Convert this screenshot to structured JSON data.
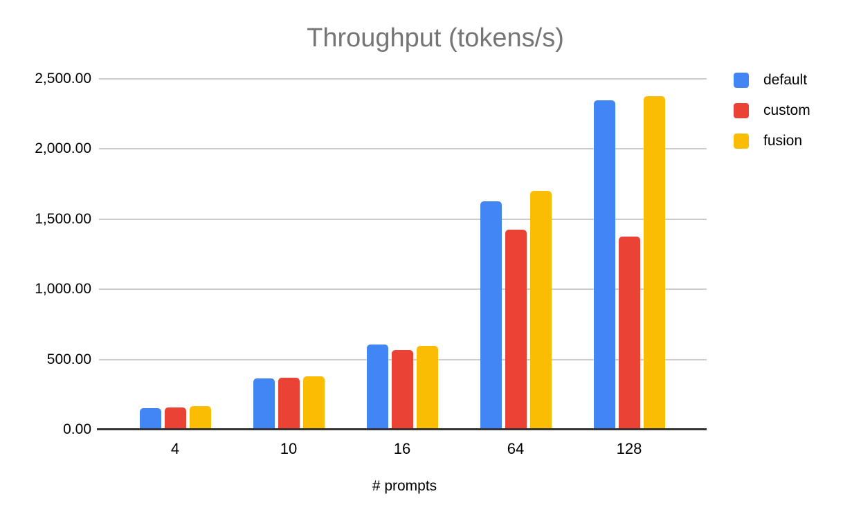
{
  "title": "Throughput (tokens/s)",
  "colors": {
    "background": "#ffffff",
    "title_text": "#757575",
    "axis_line": "#333333",
    "gridline": "#cccccc",
    "label_text": "#000000",
    "series_default": "#4285F4",
    "series_custom": "#EA4335",
    "series_fusion": "#FBBC04"
  },
  "chart_data": {
    "type": "bar",
    "title": "Throughput (tokens/s)",
    "xlabel": "# prompts",
    "ylabel": "",
    "categories": [
      "4",
      "10",
      "16",
      "64",
      "128"
    ],
    "series": [
      {
        "name": "default",
        "color": "#4285F4",
        "values": [
          155,
          365,
          606,
          1628,
          2348
        ]
      },
      {
        "name": "custom",
        "color": "#EA4335",
        "values": [
          156,
          370,
          565,
          1424,
          1375
        ]
      },
      {
        "name": "fusion",
        "color": "#FBBC04",
        "values": [
          168,
          382,
          597,
          1699,
          2376
        ]
      }
    ],
    "ylim": [
      0,
      2500
    ],
    "ytick_interval": 500,
    "ytick_labels": [
      "0.00",
      "500.00",
      "1,000.00",
      "1,500.00",
      "2,000.00",
      "2,500.00"
    ],
    "grid": true,
    "legend_position": "right"
  }
}
